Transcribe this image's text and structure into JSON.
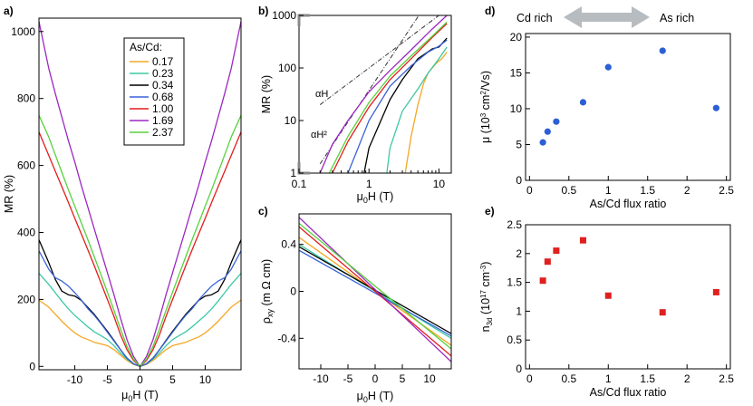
{
  "panels": {
    "a": "a)",
    "b": "b)",
    "c": "c)",
    "d": "d)",
    "e": "e)"
  },
  "legend": {
    "title": "As/Cd:",
    "labels": [
      "0.17",
      "0.23",
      "0.34",
      "0.68",
      "1.00",
      "1.69",
      "2.37"
    ],
    "colors": [
      "#f5a623",
      "#3cc8a4",
      "#000000",
      "#3a64d8",
      "#e51c1c",
      "#9a28c0",
      "#57d13c"
    ]
  },
  "arrow": {
    "left_label": "Cd rich",
    "right_label": "As rich",
    "color": "#b7bcc0"
  },
  "annotations": {
    "linear": "αH",
    "quadratic": "αH²"
  },
  "chart_data": [
    {
      "id": "a",
      "type": "line",
      "title": "",
      "xlabel": "μ0H (T)",
      "ylabel": "MR (%)",
      "xlim": [
        -15.5,
        15.5
      ],
      "ylim": [
        -10,
        1040
      ],
      "xticks": [
        -10,
        -5,
        0,
        5,
        10
      ],
      "yticks": [
        0,
        200,
        400,
        600,
        800,
        1000
      ],
      "series": [
        {
          "name": "0.17",
          "values": [
            [
              0,
              0
            ],
            [
              1,
              6
            ],
            [
              2,
              18
            ],
            [
              3,
              34
            ],
            [
              4,
              50
            ],
            [
              5,
              62
            ],
            [
              6,
              67
            ],
            [
              7,
              72
            ],
            [
              8,
              80
            ],
            [
              9,
              88
            ],
            [
              10,
              100
            ],
            [
              11,
              116
            ],
            [
              12,
              135
            ],
            [
              13,
              156
            ],
            [
              14,
              177
            ],
            [
              15.5,
              198
            ]
          ]
        },
        {
          "name": "0.23",
          "values": [
            [
              0,
              0
            ],
            [
              1,
              7
            ],
            [
              2,
              22
            ],
            [
              3,
              40
            ],
            [
              4,
              62
            ],
            [
              5,
              80
            ],
            [
              6,
              92
            ],
            [
              7,
              103
            ],
            [
              8,
              118
            ],
            [
              9,
              135
            ],
            [
              10,
              152
            ],
            [
              11,
              172
            ],
            [
              12,
              195
            ],
            [
              13,
              220
            ],
            [
              14,
              245
            ],
            [
              15.5,
              278
            ]
          ]
        },
        {
          "name": "0.34",
          "values": [
            [
              0,
              0
            ],
            [
              1,
              8
            ],
            [
              2,
              25
            ],
            [
              3,
              50
            ],
            [
              4,
              78
            ],
            [
              5,
              105
            ],
            [
              6,
              130
            ],
            [
              7,
              155
            ],
            [
              8,
              176
            ],
            [
              9,
              197
            ],
            [
              10,
              210
            ],
            [
              11,
              214
            ],
            [
              12,
              225
            ],
            [
              13,
              260
            ],
            [
              14,
              310
            ],
            [
              15.5,
              378
            ]
          ]
        },
        {
          "name": "0.68",
          "values": [
            [
              0,
              0
            ],
            [
              1,
              8
            ],
            [
              2,
              25
            ],
            [
              3,
              50
            ],
            [
              4,
              76
            ],
            [
              5,
              102
            ],
            [
              6,
              128
            ],
            [
              7,
              152
            ],
            [
              8,
              172
            ],
            [
              9,
              198
            ],
            [
              10,
              220
            ],
            [
              11,
              240
            ],
            [
              12,
              255
            ],
            [
              13,
              265
            ],
            [
              14,
              290
            ],
            [
              15.5,
              345
            ]
          ]
        },
        {
          "name": "1.00",
          "values": [
            [
              0,
              0
            ],
            [
              1,
              18
            ],
            [
              2,
              50
            ],
            [
              3,
              95
            ],
            [
              4,
              150
            ],
            [
              5,
              200
            ],
            [
              6,
              250
            ],
            [
              7,
              300
            ],
            [
              8,
              348
            ],
            [
              9,
              395
            ],
            [
              10,
              442
            ],
            [
              11,
              490
            ],
            [
              12,
              537
            ],
            [
              13,
              583
            ],
            [
              14,
              630
            ],
            [
              15.5,
              700
            ]
          ]
        },
        {
          "name": "1.69",
          "values": [
            [
              0,
              0
            ],
            [
              1,
              30
            ],
            [
              2,
              80
            ],
            [
              3,
              145
            ],
            [
              4,
              215
            ],
            [
              5,
              280
            ],
            [
              6,
              345
            ],
            [
              7,
              410
            ],
            [
              8,
              475
            ],
            [
              9,
              540
            ],
            [
              10,
              610
            ],
            [
              11,
              675
            ],
            [
              12,
              745
            ],
            [
              13,
              815
            ],
            [
              14,
              890
            ],
            [
              15.5,
              1030
            ]
          ]
        },
        {
          "name": "2.37",
          "values": [
            [
              0,
              0
            ],
            [
              1,
              22
            ],
            [
              2,
              60
            ],
            [
              3,
              112
            ],
            [
              4,
              168
            ],
            [
              5,
              222
            ],
            [
              6,
              275
            ],
            [
              7,
              327
            ],
            [
              8,
              378
            ],
            [
              9,
              428
            ],
            [
              10,
              478
            ],
            [
              11,
              528
            ],
            [
              12,
              580
            ],
            [
              13,
              632
            ],
            [
              14,
              685
            ],
            [
              15.5,
              750
            ]
          ]
        }
      ]
    },
    {
      "id": "b",
      "type": "line",
      "scale": "log-log",
      "title": "",
      "xlabel": "μ0H (T)",
      "ylabel": "MR (%)",
      "xlim": [
        0.1,
        15
      ],
      "ylim": [
        1,
        1000
      ],
      "xticks": [
        0.1,
        1,
        10
      ],
      "yticks": [
        1,
        10,
        100,
        1000
      ],
      "series": [
        {
          "name": "0.17",
          "values": [
            [
              3.3,
              1
            ],
            [
              4,
              5
            ],
            [
              5,
              20
            ],
            [
              6,
              50
            ],
            [
              7,
              80
            ],
            [
              9,
              120
            ],
            [
              11,
              150
            ],
            [
              13,
              200
            ]
          ]
        },
        {
          "name": "0.23",
          "values": [
            [
              1.8,
              1
            ],
            [
              2,
              3
            ],
            [
              3,
              15
            ],
            [
              5,
              40
            ],
            [
              7,
              80
            ],
            [
              10,
              150
            ],
            [
              13,
              250
            ]
          ]
        },
        {
          "name": "0.34",
          "values": [
            [
              0.85,
              1
            ],
            [
              1,
              3
            ],
            [
              2,
              25
            ],
            [
              3,
              60
            ],
            [
              5,
              150
            ],
            [
              8,
              230
            ],
            [
              10,
              250
            ],
            [
              13,
              370
            ]
          ]
        },
        {
          "name": "0.68",
          "values": [
            [
              0.5,
              1
            ],
            [
              0.7,
              3
            ],
            [
              1,
              10
            ],
            [
              2,
              45
            ],
            [
              4,
              110
            ],
            [
              7,
              200
            ],
            [
              10,
              260
            ],
            [
              13,
              340
            ]
          ]
        },
        {
          "name": "1.00",
          "values": [
            [
              0.3,
              1
            ],
            [
              0.5,
              4
            ],
            [
              1,
              18
            ],
            [
              2,
              60
            ],
            [
              4,
              150
            ],
            [
              8,
              380
            ],
            [
              13,
              700
            ]
          ]
        },
        {
          "name": "1.69",
          "values": [
            [
              0.2,
              1
            ],
            [
              0.3,
              3.5
            ],
            [
              0.5,
              10
            ],
            [
              1,
              35
            ],
            [
              2,
              90
            ],
            [
              4,
              220
            ],
            [
              8,
              550
            ],
            [
              13,
              1000
            ]
          ]
        },
        {
          "name": "2.37",
          "values": [
            [
              0.27,
              1
            ],
            [
              0.5,
              5
            ],
            [
              1,
              22
            ],
            [
              2,
              70
            ],
            [
              4,
              170
            ],
            [
              8,
              400
            ],
            [
              13,
              750
            ]
          ]
        }
      ],
      "guides": [
        {
          "name": "αH",
          "values": [
            [
              0.2,
              20
            ],
            [
              15,
              1500
            ]
          ]
        },
        {
          "name": "αH²",
          "values": [
            [
              0.2,
              1.5
            ],
            [
              10,
              3750
            ]
          ]
        }
      ]
    },
    {
      "id": "c",
      "type": "line",
      "title": "",
      "xlabel": "μ0H (T)",
      "ylabel": "ρxy (m Ω cm)",
      "xlim": [
        -14,
        14
      ],
      "ylim": [
        -0.66,
        0.66
      ],
      "xticks": [
        -10,
        -5,
        0,
        5,
        10
      ],
      "yticks": [
        -0.4,
        0,
        0.4
      ],
      "series": [
        {
          "name": "0.17",
          "values": [
            [
              -14,
              0.46
            ],
            [
              14,
              -0.46
            ]
          ]
        },
        {
          "name": "0.23",
          "values": [
            [
              -14,
              0.4
            ],
            [
              14,
              -0.4
            ]
          ]
        },
        {
          "name": "0.34",
          "values": [
            [
              -14,
              0.38
            ],
            [
              14,
              -0.36
            ]
          ]
        },
        {
          "name": "0.68",
          "values": [
            [
              -14,
              0.35
            ],
            [
              14,
              -0.38
            ]
          ]
        },
        {
          "name": "1.00",
          "values": [
            [
              -14,
              0.55
            ],
            [
              14,
              -0.55
            ]
          ]
        },
        {
          "name": "1.69",
          "values": [
            [
              -14,
              0.63
            ],
            [
              14,
              -0.6
            ]
          ]
        },
        {
          "name": "2.37",
          "values": [
            [
              -14,
              0.58
            ],
            [
              14,
              -0.49
            ]
          ]
        }
      ]
    },
    {
      "id": "d",
      "type": "scatter",
      "title": "",
      "xlabel": "As/Cd flux ratio",
      "ylabel": "μ (10³ cm²/Vs)",
      "xlim": [
        -0.05,
        2.55
      ],
      "ylim": [
        0,
        20.5
      ],
      "xticks": [
        0,
        0.5,
        1,
        1.5,
        2,
        2.5
      ],
      "yticks": [
        0,
        5,
        10,
        15,
        20
      ],
      "marker_color": "#2c5fd6",
      "x": [
        0.17,
        0.23,
        0.34,
        0.68,
        1.0,
        1.69,
        2.37
      ],
      "y": [
        5.3,
        6.8,
        8.2,
        10.9,
        15.8,
        18.1,
        10.1
      ]
    },
    {
      "id": "e",
      "type": "scatter",
      "title": "",
      "xlabel": "As/Cd flux ratio",
      "ylabel": "n3d (10¹⁷ cm⁻³)",
      "xlim": [
        -0.05,
        2.55
      ],
      "ylim": [
        0,
        2.5
      ],
      "xticks": [
        0,
        0.5,
        1,
        1.5,
        2,
        2.5
      ],
      "yticks": [
        0,
        0.5,
        1,
        1.5,
        2,
        2.5
      ],
      "marker_color": "#e01f1f",
      "x": [
        0.17,
        0.23,
        0.34,
        0.68,
        1.0,
        1.69,
        2.37
      ],
      "y": [
        1.53,
        1.86,
        2.05,
        2.23,
        1.27,
        0.98,
        1.33
      ]
    }
  ]
}
